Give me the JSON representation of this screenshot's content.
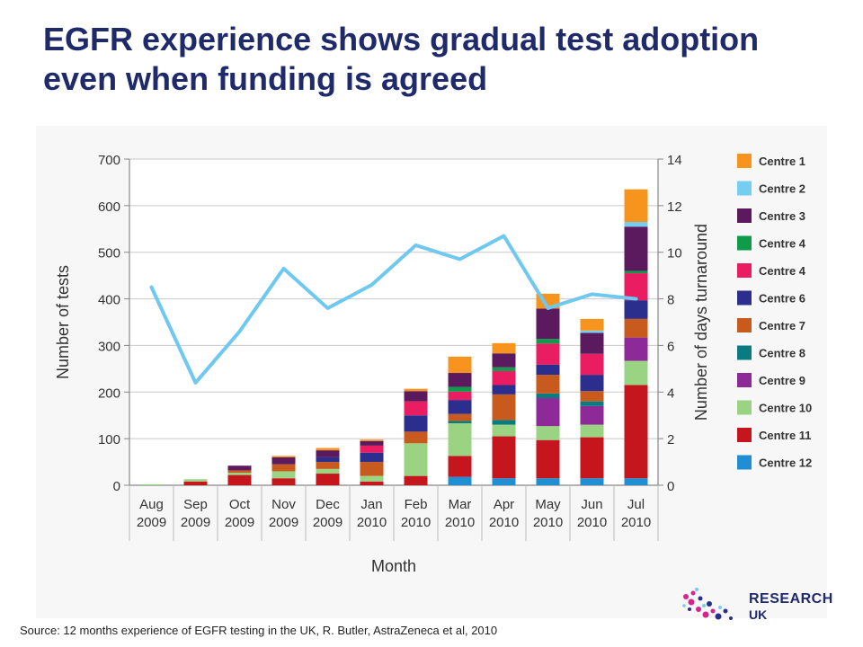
{
  "slide": {
    "title": "EGFR experience shows gradual test adoption even when funding is agreed",
    "source": "Source: 12 months experience of EGFR testing in the UK, R. Butler, AstraZeneca et al, 2010",
    "logo_line1": "RESEARCH",
    "logo_line2": "UK"
  },
  "chart_data": {
    "type": "bar",
    "stacked": true,
    "title": "",
    "xlabel": "Month",
    "ylabel": "Number of tests",
    "y2label": "Number of days turnaround",
    "ylim": [
      0,
      700
    ],
    "y2lim": [
      0,
      14
    ],
    "yticks": [
      0,
      100,
      200,
      300,
      400,
      500,
      600,
      700
    ],
    "y2ticks": [
      0,
      2,
      4,
      6,
      8,
      10,
      12,
      14
    ],
    "categories": [
      [
        "Aug",
        "2009"
      ],
      [
        "Sep",
        "2009"
      ],
      [
        "Oct",
        "2009"
      ],
      [
        "Nov",
        "2009"
      ],
      [
        "Dec",
        "2009"
      ],
      [
        "Jan",
        "2010"
      ],
      [
        "Feb",
        "2010"
      ],
      [
        "Mar",
        "2010"
      ],
      [
        "Apr",
        "2010"
      ],
      [
        "May",
        "2010"
      ],
      [
        "Jun",
        "2010"
      ],
      [
        "Jul",
        "2010"
      ]
    ],
    "legend_position": "right",
    "series": [
      {
        "name": "Centre 12",
        "color": "#1f8ed3",
        "values": [
          0,
          0,
          0,
          0,
          0,
          0,
          0,
          18,
          15,
          15,
          15,
          15
        ]
      },
      {
        "name": "Centre 11",
        "color": "#c4161c",
        "values": [
          0,
          8,
          22,
          15,
          25,
          8,
          20,
          45,
          90,
          82,
          88,
          200
        ]
      },
      {
        "name": "Centre 10",
        "color": "#9ad483",
        "values": [
          2,
          5,
          5,
          15,
          10,
          12,
          70,
          70,
          25,
          30,
          27,
          52
        ]
      },
      {
        "name": "Centre 9",
        "color": "#8e2a97",
        "values": [
          0,
          0,
          0,
          0,
          0,
          0,
          0,
          0,
          0,
          60,
          40,
          50
        ]
      },
      {
        "name": "Centre 8",
        "color": "#0a7c80",
        "values": [
          0,
          0,
          0,
          0,
          0,
          0,
          0,
          5,
          10,
          10,
          10,
          0
        ]
      },
      {
        "name": "Centre 7",
        "color": "#c85a1e",
        "values": [
          0,
          0,
          5,
          15,
          15,
          30,
          25,
          15,
          55,
          40,
          22,
          40
        ]
      },
      {
        "name": "Centre 6",
        "color": "#2b2e8c",
        "values": [
          0,
          0,
          0,
          0,
          10,
          20,
          35,
          30,
          20,
          22,
          35,
          40
        ]
      },
      {
        "name": "Centre 4",
        "color": "#ea1d63",
        "values": [
          0,
          0,
          0,
          0,
          0,
          15,
          30,
          18,
          30,
          45,
          45,
          58
        ]
      },
      {
        "name": "Centre 4",
        "color": "#0e9b4a",
        "values": [
          0,
          0,
          0,
          0,
          0,
          0,
          0,
          10,
          8,
          10,
          0,
          5
        ]
      },
      {
        "name": "Centre 3",
        "color": "#5b1a5e",
        "values": [
          0,
          0,
          10,
          15,
          15,
          10,
          22,
          30,
          30,
          65,
          45,
          95
        ]
      },
      {
        "name": "Centre 2",
        "color": "#75cdf0",
        "values": [
          0,
          0,
          0,
          0,
          0,
          0,
          0,
          0,
          0,
          0,
          5,
          10
        ]
      },
      {
        "name": "Centre 1",
        "color": "#f6941d",
        "values": [
          0,
          0,
          0,
          3,
          5,
          3,
          5,
          35,
          22,
          32,
          25,
          70
        ]
      }
    ],
    "legend_order": [
      "Centre 1",
      "Centre 2",
      "Centre 3",
      "Centre 4",
      "Centre 4",
      "Centre 6",
      "Centre 7",
      "Centre 8",
      "Centre 9",
      "Centre 10",
      "Centre 11",
      "Centre 12"
    ],
    "line": {
      "axis": "right",
      "color": "#6ec8ef",
      "values": [
        8.5,
        4.4,
        6.6,
        9.3,
        7.6,
        8.6,
        10.3,
        9.7,
        10.7,
        7.6,
        8.2,
        8.0
      ]
    }
  }
}
